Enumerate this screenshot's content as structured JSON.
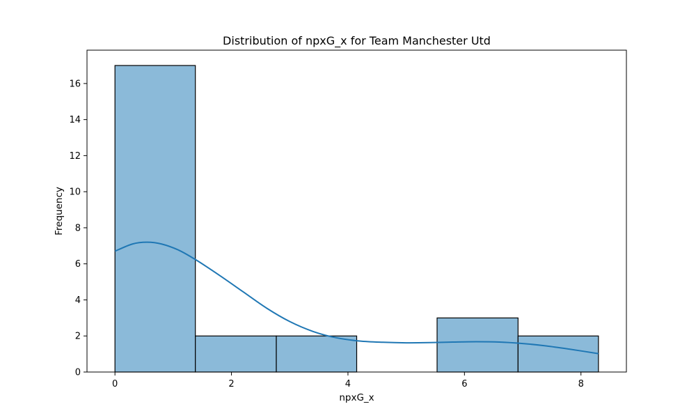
{
  "chart_data": {
    "type": "bar",
    "subtype": "histogram",
    "title": "Distribution of npxG_x for Team Manchester Utd",
    "xlabel": "npxG_x",
    "ylabel": "Frequency",
    "xlim": [
      -0.48,
      8.78
    ],
    "ylim": [
      0,
      17.85
    ],
    "xticks": [
      0,
      2,
      4,
      6,
      8
    ],
    "yticks": [
      0,
      2,
      4,
      6,
      8,
      10,
      12,
      14,
      16
    ],
    "bins": [
      {
        "x0": 0.0,
        "x1": 1.38,
        "count": 17
      },
      {
        "x0": 1.38,
        "x1": 2.77,
        "count": 2
      },
      {
        "x0": 2.77,
        "x1": 4.15,
        "count": 2
      },
      {
        "x0": 4.15,
        "x1": 5.53,
        "count": 0
      },
      {
        "x0": 5.53,
        "x1": 6.92,
        "count": 3
      },
      {
        "x0": 6.92,
        "x1": 8.3,
        "count": 2
      }
    ],
    "kde": {
      "x": [
        0.0,
        0.3,
        0.55,
        0.8,
        1.1,
        1.4,
        1.8,
        2.2,
        2.6,
        3.0,
        3.4,
        3.8,
        4.2,
        4.6,
        5.0,
        5.4,
        5.8,
        6.2,
        6.6,
        7.0,
        7.4,
        7.8,
        8.3
      ],
      "y": [
        6.7,
        7.1,
        7.2,
        7.1,
        6.75,
        6.2,
        5.35,
        4.45,
        3.55,
        2.8,
        2.25,
        1.9,
        1.72,
        1.65,
        1.62,
        1.63,
        1.66,
        1.68,
        1.66,
        1.58,
        1.45,
        1.27,
        1.02
      ]
    },
    "bar_fill": "#8bbad9",
    "bar_edge": "#000000",
    "kde_color": "#1f77b4",
    "grid": false,
    "legend": "none"
  }
}
